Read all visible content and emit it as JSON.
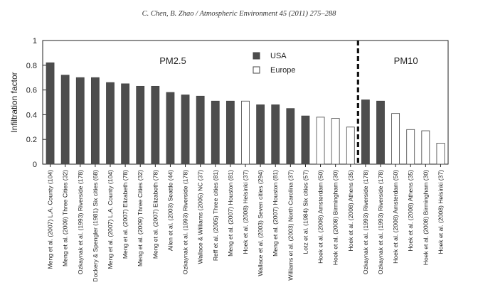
{
  "header": "C. Chen, B. Zhao / Atmospheric Environment 45 (2011) 275–288",
  "chart_data": {
    "type": "bar",
    "ylabel": "Infiltration factor",
    "ylim": [
      0,
      1
    ],
    "yticks": [
      0,
      0.2,
      0.4,
      0.6,
      0.8,
      1
    ],
    "yticklabels": [
      "0",
      "0.2",
      "0.4",
      "0.6",
      "0.8",
      "1"
    ],
    "regions": [
      {
        "label": "PM2.5",
        "count": 21
      },
      {
        "label": "PM10",
        "count": 6
      }
    ],
    "legend": [
      {
        "name": "USA",
        "color": "#4d4d4d"
      },
      {
        "name": "Europe",
        "color": "#ffffff"
      }
    ],
    "categories": [
      "Meng et al. (2007) L.A. County (104)",
      "Meng et al. (2009) Three Cities (32)",
      "Ozkaynak et al. (1993) Riverside (178)",
      "Dockery & Spengler (1981) Six cities (68)",
      "Meng et al. (2007) L.A. County (104)",
      "Meng et al. (2007) Elizabeth (78)",
      "Meng et al. (2009) Three Cities (32)",
      "Meng et al. (2007) Elizabeth (78)",
      "Allen et al. (2003) Seattle (44)",
      "Ozkaynak et al. (1993) Riverside (178)",
      "Wallace & Williams (2005) NC (37)",
      "Reff et al. (2005) Three cities (81)",
      "Meng et al. (2007) Houston (81)",
      "Hoek et al. (2008) Helsinki (37)",
      "Wallace et al. (2003) Seven cities (294)",
      "Meng et al. (2007) Houston (81)",
      "Williams et al. (2003) North Carolina (37)",
      "Lotz et al. (1984) Six cities (57)",
      "Hoek et al. (2008) Amsterdam (50)",
      "Hoek et al. (2008) Birmingham (30)",
      "Hoek et al. (2008) Athens (35)",
      "Ozkaynak et al. (1993) Riverside (178)",
      "Ozkaynak et al. (1993) Riverside (178)",
      "Hoek et al. (2008) Amsterdam (50)",
      "Hoek et al. (2008) Athens (35)",
      "Hoek et al. (2008) Birmingham (30)",
      "Hoek et al. (2008) Helsinki (37)"
    ],
    "values": [
      0.82,
      0.72,
      0.7,
      0.7,
      0.66,
      0.65,
      0.63,
      0.63,
      0.58,
      0.56,
      0.55,
      0.51,
      0.51,
      0.51,
      0.48,
      0.48,
      0.45,
      0.39,
      0.38,
      0.37,
      0.3,
      0.52,
      0.51,
      0.41,
      0.28,
      0.27,
      0.17
    ],
    "groups": [
      "USA",
      "USA",
      "USA",
      "USA",
      "USA",
      "USA",
      "USA",
      "USA",
      "USA",
      "USA",
      "USA",
      "USA",
      "USA",
      "Europe",
      "USA",
      "USA",
      "USA",
      "USA",
      "Europe",
      "Europe",
      "Europe",
      "USA",
      "USA",
      "Europe",
      "Europe",
      "Europe",
      "Europe"
    ]
  }
}
